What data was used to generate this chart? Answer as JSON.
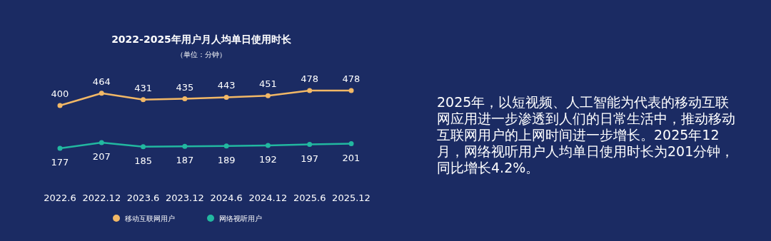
{
  "chart_data": {
    "type": "line",
    "title": "2022-2025年用户月人均单日使用时长",
    "subtitle": "（单位：分钟）",
    "categories": [
      "2022.6",
      "2022.12",
      "2023.6",
      "2023.12",
      "2024.6",
      "2024.12",
      "2025.6",
      "2025.12"
    ],
    "series": [
      {
        "name": "移动互联网用户",
        "color": "#f2b866",
        "values": [
          400,
          464,
          431,
          435,
          443,
          451,
          478,
          478
        ]
      },
      {
        "name": "网络视听用户",
        "color": "#22b8a0",
        "values": [
          177,
          207,
          185,
          187,
          189,
          192,
          197,
          201
        ]
      }
    ],
    "data_labels": true,
    "marker": "circle",
    "legend": "bottom",
    "annotations": [
      "2025年，以短视频、人工智能为代表的移动互联网应用进一步渗透到人们的日常生活中，推动移动互联网用户的上网时间进一步增长。2025年12月，网络视听用户人均单日使用时长为201分钟，同比增长4.2%。"
    ]
  }
}
